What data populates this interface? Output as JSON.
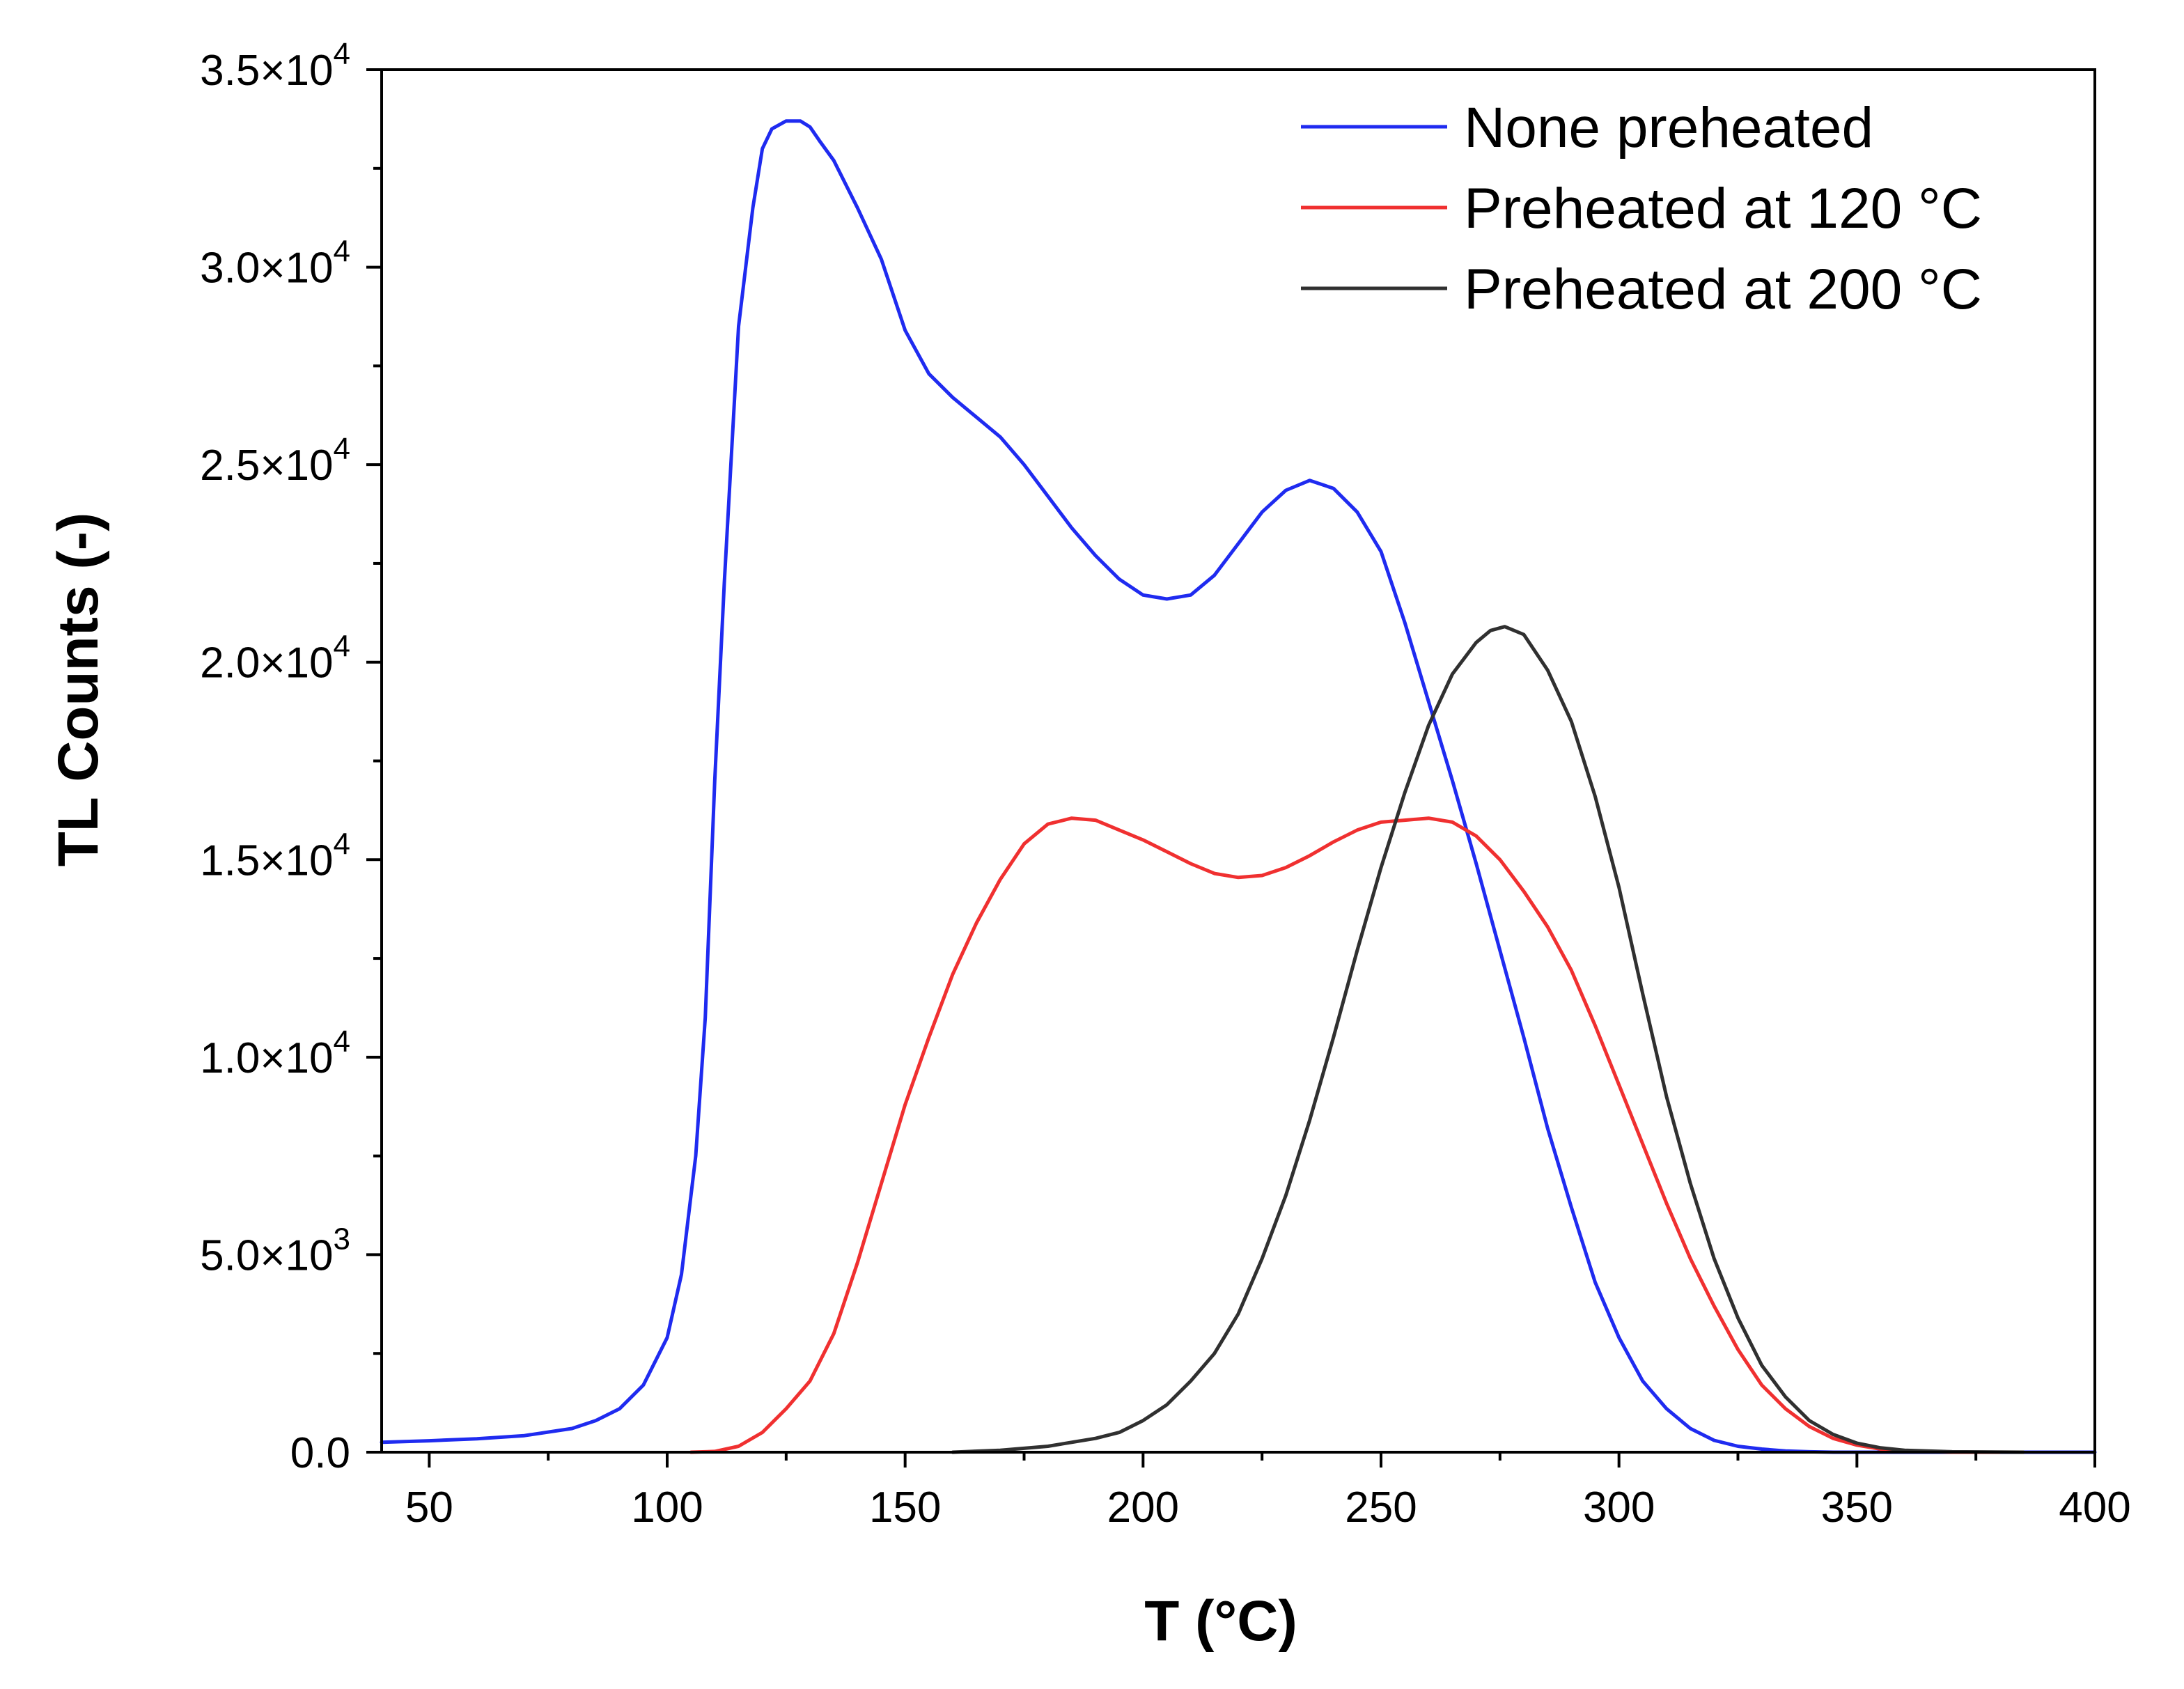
{
  "chart_data": {
    "type": "line",
    "title": "",
    "xlabel": "T (°C)",
    "ylabel": "TL Counts (-)",
    "xlim": [
      40,
      400
    ],
    "ylim": [
      0,
      35000
    ],
    "x_ticks": [
      50,
      100,
      150,
      200,
      250,
      300,
      350,
      400
    ],
    "x_tick_labels": [
      "50",
      "100",
      "150",
      "200",
      "250",
      "300",
      "350",
      "400"
    ],
    "y_ticks": [
      0,
      5000,
      10000,
      15000,
      20000,
      25000,
      30000,
      35000
    ],
    "y_tick_labels": [
      {
        "mantissa": "0.0",
        "exponent": ""
      },
      {
        "mantissa": "5.0×10",
        "exponent": "3"
      },
      {
        "mantissa": "1.0×10",
        "exponent": "4"
      },
      {
        "mantissa": "1.5×10",
        "exponent": "4"
      },
      {
        "mantissa": "2.0×10",
        "exponent": "4"
      },
      {
        "mantissa": "2.5×10",
        "exponent": "4"
      },
      {
        "mantissa": "3.0×10",
        "exponent": "4"
      },
      {
        "mantissa": "3.5×10",
        "exponent": "4"
      }
    ],
    "grid": false,
    "legend_position": "top-right",
    "series": [
      {
        "name": "None preheated",
        "color": "#1f2bf0",
        "x": [
          40,
          50,
          60,
          70,
          80,
          85,
          90,
          95,
          100,
          103,
          106,
          108,
          110,
          112,
          115,
          118,
          120,
          122,
          125,
          128,
          130,
          132,
          135,
          140,
          145,
          150,
          155,
          160,
          165,
          170,
          175,
          180,
          185,
          190,
          195,
          200,
          205,
          210,
          215,
          220,
          225,
          230,
          235,
          240,
          245,
          250,
          255,
          260,
          265,
          270,
          275,
          280,
          285,
          290,
          295,
          300,
          305,
          310,
          315,
          320,
          325,
          330,
          335,
          340,
          345,
          350,
          355,
          360,
          370,
          380,
          400
        ],
        "values": [
          250,
          290,
          340,
          420,
          600,
          800,
          1100,
          1700,
          2900,
          4500,
          7500,
          11000,
          17000,
          22000,
          28500,
          31500,
          33000,
          33500,
          33700,
          33700,
          33550,
          33200,
          32700,
          31500,
          30200,
          28400,
          27300,
          26700,
          26200,
          25700,
          25000,
          24200,
          23400,
          22700,
          22100,
          21700,
          21600,
          21700,
          22200,
          23000,
          23800,
          24350,
          24600,
          24400,
          23800,
          22800,
          21000,
          19000,
          17000,
          14900,
          12700,
          10500,
          8200,
          6200,
          4300,
          2900,
          1800,
          1100,
          600,
          300,
          150,
          80,
          30,
          10,
          0,
          0,
          0,
          0,
          0,
          0,
          0
        ]
      },
      {
        "name": "Preheated at 120 °C",
        "color": "#f03030",
        "x": [
          105,
          110,
          115,
          120,
          125,
          130,
          135,
          140,
          145,
          150,
          155,
          160,
          165,
          170,
          175,
          180,
          185,
          190,
          195,
          200,
          205,
          210,
          215,
          220,
          225,
          230,
          235,
          240,
          245,
          250,
          255,
          260,
          265,
          270,
          275,
          280,
          285,
          290,
          295,
          300,
          305,
          310,
          315,
          320,
          325,
          330,
          335,
          340,
          345,
          350,
          355,
          360,
          370,
          380
        ],
        "values": [
          0,
          20,
          150,
          500,
          1100,
          1800,
          3000,
          4800,
          6800,
          8800,
          10500,
          12100,
          13400,
          14500,
          15400,
          15900,
          16050,
          16000,
          15750,
          15500,
          15200,
          14900,
          14650,
          14550,
          14600,
          14800,
          15100,
          15450,
          15750,
          15950,
          16000,
          16050,
          15950,
          15600,
          15000,
          14200,
          13300,
          12200,
          10800,
          9300,
          7800,
          6300,
          4900,
          3700,
          2600,
          1700,
          1100,
          650,
          350,
          180,
          80,
          30,
          0,
          0
        ]
      },
      {
        "name": "Preheated at 200 °C",
        "color": "#303030",
        "x": [
          160,
          170,
          180,
          185,
          190,
          195,
          200,
          205,
          210,
          215,
          220,
          225,
          230,
          235,
          240,
          245,
          250,
          255,
          260,
          265,
          270,
          273,
          276,
          280,
          285,
          290,
          295,
          300,
          305,
          310,
          315,
          320,
          325,
          330,
          335,
          340,
          345,
          350,
          355,
          360,
          370,
          385
        ],
        "values": [
          0,
          50,
          150,
          250,
          350,
          500,
          800,
          1200,
          1800,
          2500,
          3500,
          4900,
          6500,
          8400,
          10500,
          12700,
          14800,
          16700,
          18400,
          19700,
          20500,
          20800,
          20900,
          20700,
          19800,
          18500,
          16600,
          14300,
          11600,
          9000,
          6800,
          4900,
          3400,
          2200,
          1400,
          800,
          450,
          230,
          110,
          50,
          10,
          0
        ]
      }
    ]
  }
}
